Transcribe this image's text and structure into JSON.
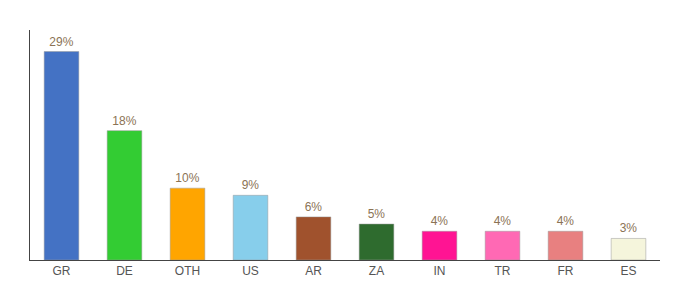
{
  "chart_data": {
    "type": "bar",
    "categories": [
      "GR",
      "DE",
      "OTH",
      "US",
      "AR",
      "ZA",
      "IN",
      "TR",
      "FR",
      "ES"
    ],
    "values": [
      29,
      18,
      10,
      9,
      6,
      5,
      4,
      4,
      4,
      3
    ],
    "value_labels": [
      "29%",
      "18%",
      "10%",
      "9%",
      "6%",
      "5%",
      "4%",
      "4%",
      "4%",
      "3%"
    ],
    "colors": [
      "#4472C4",
      "#33CC33",
      "#FFA500",
      "#87CEEB",
      "#A0522D",
      "#2E6B2E",
      "#FF1493",
      "#FF69B4",
      "#E88080",
      "#F5F5DC"
    ],
    "ylim": [
      0,
      32
    ],
    "data_labels": true,
    "tick_labels": "x",
    "grid": false
  }
}
